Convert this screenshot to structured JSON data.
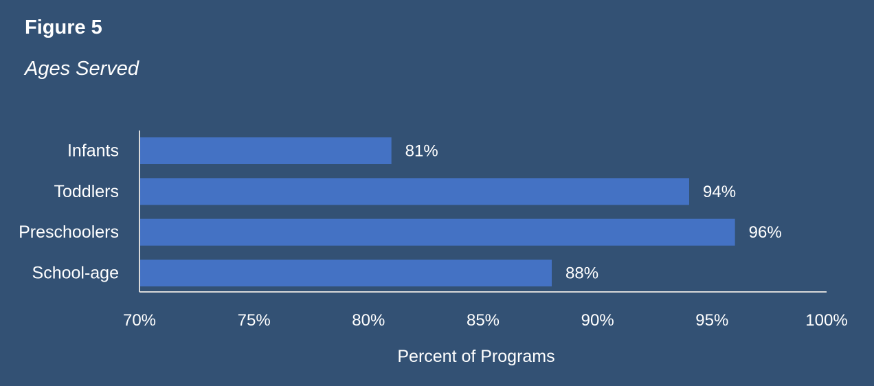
{
  "figure_label": "Figure 5",
  "figure_title": "Ages Served",
  "colors": {
    "background": "#335174",
    "bar": "#4472C4",
    "axis": "#D9D9D9",
    "text": "#FFFFFF"
  },
  "chart_data": {
    "type": "bar",
    "orientation": "horizontal",
    "categories": [
      "Infants",
      "Toddlers",
      "Preschoolers",
      "School-age"
    ],
    "values": [
      81,
      94,
      96,
      88
    ],
    "value_labels": [
      "81%",
      "94%",
      "96%",
      "88%"
    ],
    "xlim": [
      70,
      100
    ],
    "x_ticks": [
      70,
      75,
      80,
      85,
      90,
      95,
      100
    ],
    "x_tick_labels": [
      "70%",
      "75%",
      "80%",
      "85%",
      "90%",
      "95%",
      "100%"
    ],
    "xlabel": "Percent of Programs",
    "ylabel": "",
    "grid": false,
    "legend": "none"
  }
}
